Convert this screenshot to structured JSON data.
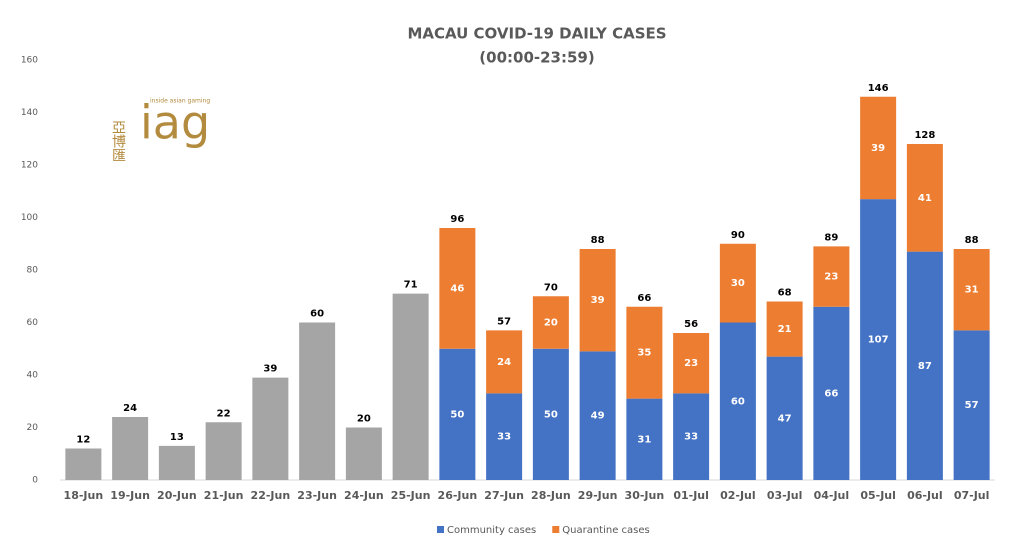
{
  "chart_data": {
    "type": "stacked_bar",
    "title": "MACAU COVID-19 DAILY CASES",
    "subtitle": "(00:00-23:59)",
    "logo": {
      "chinese": "亞博匯",
      "tagline": "inside asian gaming",
      "text": "iag"
    },
    "categories": [
      "18-Jun",
      "19-Jun",
      "20-Jun",
      "21-Jun",
      "22-Jun",
      "23-Jun",
      "24-Jun",
      "25-Jun",
      "26-Jun",
      "27-Jun",
      "28-Jun",
      "29-Jun",
      "30-Jun",
      "01-Jul",
      "02-Jul",
      "03-Jul",
      "04-Jul",
      "05-Jul",
      "06-Jul",
      "07-Jul"
    ],
    "series": [
      {
        "color": "#a5a5a5",
        "values": [
          12,
          24,
          13,
          22,
          39,
          60,
          20,
          71,
          null,
          null,
          null,
          null,
          null,
          null,
          null,
          null,
          null,
          null,
          null,
          null
        ]
      },
      {
        "name": "Community cases",
        "color": "#4472c4",
        "values": [
          null,
          null,
          null,
          null,
          null,
          null,
          null,
          null,
          50,
          33,
          50,
          49,
          31,
          33,
          60,
          47,
          66,
          107,
          87,
          57
        ]
      },
      {
        "name": "Quarantine cases",
        "color": "#ed7d31",
        "values": [
          null,
          null,
          null,
          null,
          null,
          null,
          null,
          null,
          46,
          24,
          20,
          39,
          35,
          23,
          30,
          21,
          23,
          39,
          41,
          31
        ]
      }
    ],
    "totals": [
      null,
      null,
      null,
      null,
      null,
      null,
      null,
      null,
      96,
      57,
      70,
      88,
      66,
      56,
      90,
      68,
      89,
      146,
      128,
      88
    ],
    "ylim": [
      0,
      160
    ],
    "yticks": [
      0,
      20,
      40,
      60,
      80,
      100,
      120,
      140,
      160
    ],
    "grid": false
  }
}
